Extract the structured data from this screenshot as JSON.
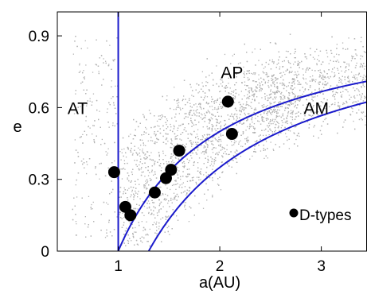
{
  "chart_data": {
    "type": "scatter",
    "xlabel": "a(AU)",
    "ylabel": "e",
    "xlim": [
      0.4,
      3.45
    ],
    "ylim": [
      0,
      1.0
    ],
    "x_ticks": [
      {
        "value": 1,
        "label": "1"
      },
      {
        "value": 2,
        "label": "2"
      },
      {
        "value": 3,
        "label": "3"
      }
    ],
    "y_ticks": [
      {
        "value": 0,
        "label": "0"
      },
      {
        "value": 0.3,
        "label": "0.3"
      },
      {
        "value": 0.6,
        "label": "0.6"
      },
      {
        "value": 0.9,
        "label": "0.9"
      }
    ],
    "grid": false,
    "region_labels": [
      {
        "text": "AT",
        "x": 0.6,
        "y": 0.6
      },
      {
        "text": "AP",
        "x": 2.12,
        "y": 0.75
      },
      {
        "text": "AM",
        "x": 2.95,
        "y": 0.6
      }
    ],
    "legend": {
      "label": "D-types",
      "placement": "bottom-right"
    },
    "background_population": {
      "color": "#b3b3b3",
      "description_density": "dense cloud of asteroid orbits, concentrated between a=1.0 and a=3.3 AU"
    },
    "curves": [
      {
        "name": "q = 1.0 AU",
        "kind": "perihelion",
        "value": 1.0,
        "color": "#1a1acc"
      },
      {
        "name": "q = 1.3 AU",
        "kind": "perihelion",
        "value": 1.3,
        "color": "#1a1acc"
      },
      {
        "name": "a = 1.0 AU",
        "kind": "vertical",
        "value": 1.0,
        "color": "#1a1acc"
      }
    ],
    "series": [
      {
        "name": "D-types",
        "color": "#000000",
        "points": [
          {
            "x": 0.96,
            "y": 0.33
          },
          {
            "x": 1.07,
            "y": 0.185
          },
          {
            "x": 1.12,
            "y": 0.15
          },
          {
            "x": 1.36,
            "y": 0.245
          },
          {
            "x": 1.47,
            "y": 0.305
          },
          {
            "x": 1.52,
            "y": 0.34
          },
          {
            "x": 1.6,
            "y": 0.42
          },
          {
            "x": 2.08,
            "y": 0.625
          },
          {
            "x": 2.12,
            "y": 0.49
          }
        ]
      }
    ]
  }
}
